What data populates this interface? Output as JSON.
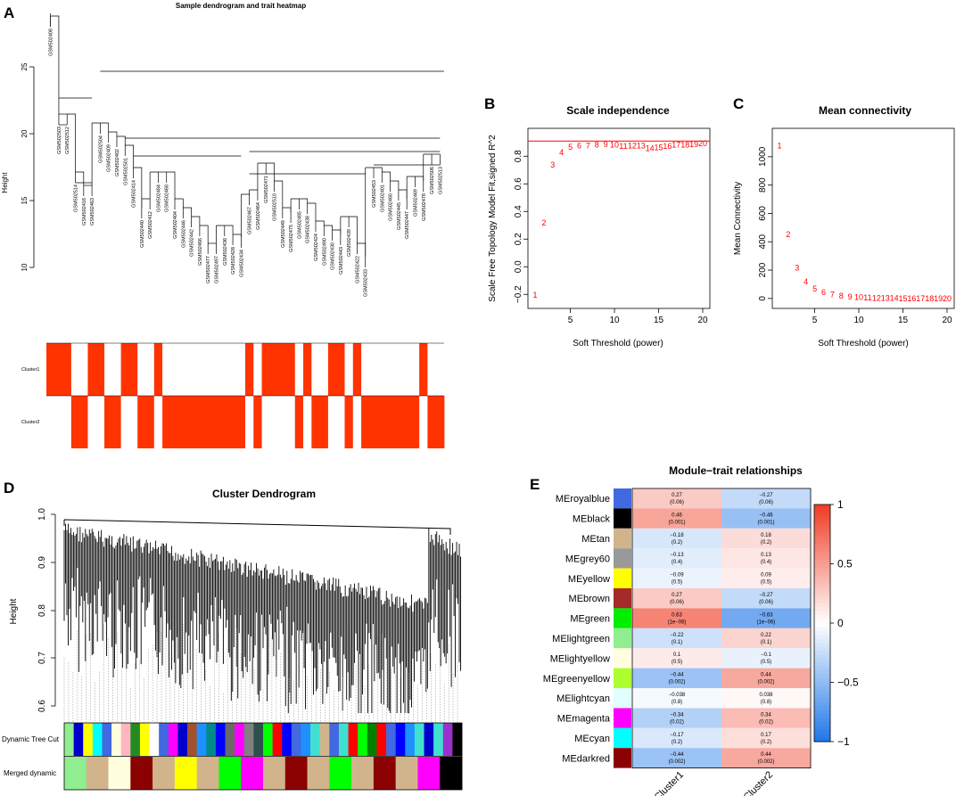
{
  "panels": {
    "A": {
      "letter": "A",
      "title": "Sample dendrogram and trait heatmap",
      "ylabel": "Height",
      "yticks": [
        "10",
        "15",
        "20",
        "25"
      ],
      "sample_labels": [
        "GSM502408",
        "GSM502503",
        "GSM502512",
        "GSM502514",
        "GSM502416",
        "GSM502463",
        "GSM502504",
        "GSM502409",
        "GSM502402",
        "GSM502501",
        "GSM502414",
        "GSM502440",
        "GSM502412",
        "GSM502484",
        "GSM502468",
        "GSM502404",
        "GSM502446",
        "GSM502442",
        "GSM502466",
        "GSM502477",
        "GSM502497",
        "GSM502436",
        "GSM502428",
        "GSM502434",
        "GSM502467",
        "GSM502464",
        "GSM502471",
        "GSM502510",
        "GSM502449",
        "GSM502475",
        "GSM502485",
        "GSM502438",
        "GSM502424",
        "GSM502490",
        "GSM502430",
        "GSM502443",
        "GSM502439",
        "GSM502422",
        "GSM502433",
        "GSM502453",
        "GSM502401",
        "GSM502460",
        "GSM502445",
        "GSM502447",
        "GSM502469",
        "GSM502478",
        "GSM502506",
        "GSM502513"
      ],
      "trait_labels": [
        "Cluster1",
        "Cluster2"
      ],
      "trait_color": "#ff3300",
      "cluster1_membership": [
        1,
        1,
        1,
        0,
        0,
        1,
        1,
        0,
        0,
        1,
        1,
        0,
        0,
        1,
        0,
        0,
        0,
        0,
        0,
        0,
        0,
        0,
        0,
        0,
        1,
        0,
        1,
        1,
        1,
        1,
        0,
        1,
        0,
        0,
        1,
        1,
        0,
        1,
        0,
        0,
        0,
        0,
        0,
        0,
        0,
        1,
        0,
        0
      ]
    },
    "B": {
      "letter": "B",
      "chart_data": {
        "type": "scatter",
        "title": "Scale independence",
        "xlabel": "Soft Threshold (power)",
        "ylabel": "Scale Free Topology Model Fit,signed R^2",
        "xlim": [
          1,
          20
        ],
        "ylim": [
          -0.25,
          0.95
        ],
        "xticks": [
          5,
          10,
          15,
          20
        ],
        "yticks": [
          -0.2,
          0.0,
          0.2,
          0.4,
          0.6,
          0.8
        ],
        "x": [
          1,
          2,
          3,
          4,
          5,
          6,
          7,
          8,
          9,
          10,
          11,
          12,
          13,
          14,
          15,
          16,
          17,
          18,
          19,
          20
        ],
        "y": [
          -0.2,
          0.32,
          0.74,
          0.83,
          0.87,
          0.88,
          0.88,
          0.885,
          0.89,
          0.885,
          0.875,
          0.88,
          0.88,
          0.86,
          0.865,
          0.875,
          0.885,
          0.885,
          0.89,
          0.895
        ],
        "point_labels": [
          "1",
          "2",
          "3",
          "4",
          "5",
          "6",
          "7",
          "8",
          "9",
          "10",
          "11",
          "12",
          "13",
          "14",
          "15",
          "16",
          "17",
          "18",
          "19",
          "20"
        ],
        "hline": 0.91,
        "color": "#ff0000"
      }
    },
    "C": {
      "letter": "C",
      "chart_data": {
        "type": "scatter",
        "title": "Mean connectivity",
        "xlabel": "Soft Threshold (power)",
        "ylabel": "Mean Connectivity",
        "xlim": [
          1,
          20
        ],
        "ylim": [
          -20,
          1150
        ],
        "xticks": [
          5,
          10,
          15,
          20
        ],
        "yticks": [
          0,
          200,
          400,
          600,
          800,
          1000
        ],
        "x": [
          1,
          2,
          3,
          4,
          5,
          6,
          7,
          8,
          9,
          10,
          11,
          12,
          13,
          14,
          15,
          16,
          17,
          18,
          19,
          20
        ],
        "y": [
          1080,
          455,
          220,
          120,
          70,
          45,
          30,
          20,
          15,
          10,
          8,
          6,
          5,
          4,
          3,
          3,
          2,
          2,
          2,
          1
        ],
        "point_labels": [
          "1",
          "2",
          "3",
          "4",
          "5",
          "6",
          "7",
          "8",
          "9",
          "10",
          "11",
          "12",
          "13",
          "14",
          "15",
          "16",
          "17",
          "18",
          "19",
          "20"
        ],
        "color": "#ff0000"
      }
    },
    "D": {
      "letter": "D",
      "title": "Cluster Dendrogram",
      "ylabel": "Height",
      "yticks": [
        "0.6",
        "0.7",
        "0.8",
        "0.9",
        "1.0"
      ],
      "track_labels": [
        "Dynamic Tree Cut",
        "Merged dynamic"
      ],
      "dynamic_colors": [
        "#90ee90",
        "#0000cd",
        "#ffff00",
        "#00ffff",
        "#4169e1",
        "#ffffe0",
        "#ffb6c1",
        "#228b22",
        "#ffff00",
        "#ffffff",
        "#4169e1",
        "#ff00ff",
        "#0000cd",
        "#a0522d",
        "#1e90ff",
        "#008b8b",
        "#0000ff",
        "#696969",
        "#ff00ff",
        "#808080",
        "#2f4f4f",
        "#00ff00",
        "#ff0000",
        "#0000ff",
        "#4169e1",
        "#1e90ff",
        "#40e0d0",
        "#d2b48c",
        "#4169e1",
        "#40e0d0",
        "#ff0000",
        "#00ff00",
        "#008000",
        "#ff0000",
        "#4169e1",
        "#0000ff",
        "#1e90ff",
        "#40e0d0",
        "#0000cd",
        "#40e0d0",
        "#9932cc",
        "#000000"
      ],
      "merged_colors": [
        "#90ee90",
        "#d2b48c",
        "#ffffe0",
        "#8b0000",
        "#d2b48c",
        "#ffff00",
        "#d2b48c",
        "#00ff00",
        "#ff00ff",
        "#d2b48c",
        "#8b0000",
        "#d2b48c",
        "#00ff00",
        "#d2b48c",
        "#8b0000",
        "#d2b48c",
        "#ff00ff",
        "#000000"
      ]
    },
    "E": {
      "letter": "E",
      "chart_data": {
        "type": "heatmap",
        "title": "Module−trait relationships",
        "columns": [
          "Cluster1",
          "Cluster2"
        ],
        "rows": [
          {
            "module": "MEroyalblue",
            "color": "#4169e1",
            "values": [
              "0.27",
              "−0.27"
            ],
            "pvalues": [
              "(0.06)",
              "(0.06)"
            ],
            "r": [
              0.27,
              -0.27
            ]
          },
          {
            "module": "MEblack",
            "color": "#000000",
            "values": [
              "0.46",
              "−0.46"
            ],
            "pvalues": [
              "(0.001)",
              "(0.001)"
            ],
            "r": [
              0.46,
              -0.46
            ]
          },
          {
            "module": "MEtan",
            "color": "#d2b48c",
            "values": [
              "−0.18",
              "0.18"
            ],
            "pvalues": [
              "(0.2)",
              "(0.2)"
            ],
            "r": [
              -0.18,
              0.18
            ]
          },
          {
            "module": "MEgrey60",
            "color": "#999999",
            "values": [
              "−0.13",
              "0.13"
            ],
            "pvalues": [
              "(0.4)",
              "(0.4)"
            ],
            "r": [
              -0.13,
              0.13
            ]
          },
          {
            "module": "MEyellow",
            "color": "#ffff00",
            "values": [
              "−0.09",
              "0.09"
            ],
            "pvalues": [
              "(0.5)",
              "(0.5)"
            ],
            "r": [
              -0.09,
              0.09
            ]
          },
          {
            "module": "MEbrown",
            "color": "#a52a2a",
            "values": [
              "0.27",
              "−0.27"
            ],
            "pvalues": [
              "(0.06)",
              "(0.06)"
            ],
            "r": [
              0.27,
              -0.27
            ]
          },
          {
            "module": "MEgreen",
            "color": "#00ee00",
            "values": [
              "0.63",
              "−0.63"
            ],
            "pvalues": [
              "(1e−06)",
              "(1e−06)"
            ],
            "r": [
              0.63,
              -0.63
            ]
          },
          {
            "module": "MElightgreen",
            "color": "#90ee90",
            "values": [
              "−0.22",
              "0.22"
            ],
            "pvalues": [
              "(0.1)",
              "(0.1)"
            ],
            "r": [
              -0.22,
              0.22
            ]
          },
          {
            "module": "MElightyellow",
            "color": "#ffffe0",
            "values": [
              "0.1",
              "−0.1"
            ],
            "pvalues": [
              "(0.5)",
              "(0.5)"
            ],
            "r": [
              0.1,
              -0.1
            ]
          },
          {
            "module": "MEgreenyellow",
            "color": "#adff2f",
            "values": [
              "−0.44",
              "0.44"
            ],
            "pvalues": [
              "(0.002)",
              "(0.002)"
            ],
            "r": [
              -0.44,
              0.44
            ]
          },
          {
            "module": "MElightcyan",
            "color": "#e0ffff",
            "values": [
              "−0.038",
              "0.038"
            ],
            "pvalues": [
              "(0.8)",
              "(0.8)"
            ],
            "r": [
              -0.038,
              0.038
            ]
          },
          {
            "module": "MEmagenta",
            "color": "#ff00ff",
            "values": [
              "−0.34",
              "0.34"
            ],
            "pvalues": [
              "(0.02)",
              "(0.02)"
            ],
            "r": [
              -0.34,
              0.34
            ]
          },
          {
            "module": "MEcyan",
            "color": "#00ffff",
            "values": [
              "−0.17",
              "0.17"
            ],
            "pvalues": [
              "(0.2)",
              "(0.2)"
            ],
            "r": [
              -0.17,
              0.17
            ]
          },
          {
            "module": "MEdarkred",
            "color": "#8b0000",
            "values": [
              "−0.44",
              "0.44"
            ],
            "pvalues": [
              "(0.002)",
              "(0.002)"
            ],
            "r": [
              -0.44,
              0.44
            ]
          }
        ],
        "colorbar_ticks": [
          "1",
          "0.5",
          "0",
          "−0.5",
          "−1"
        ],
        "colorbar_range": [
          -1,
          1
        ],
        "colors": {
          "low": "#1f77e8",
          "mid": "#ffffff",
          "high": "#ef3b24"
        }
      }
    }
  }
}
